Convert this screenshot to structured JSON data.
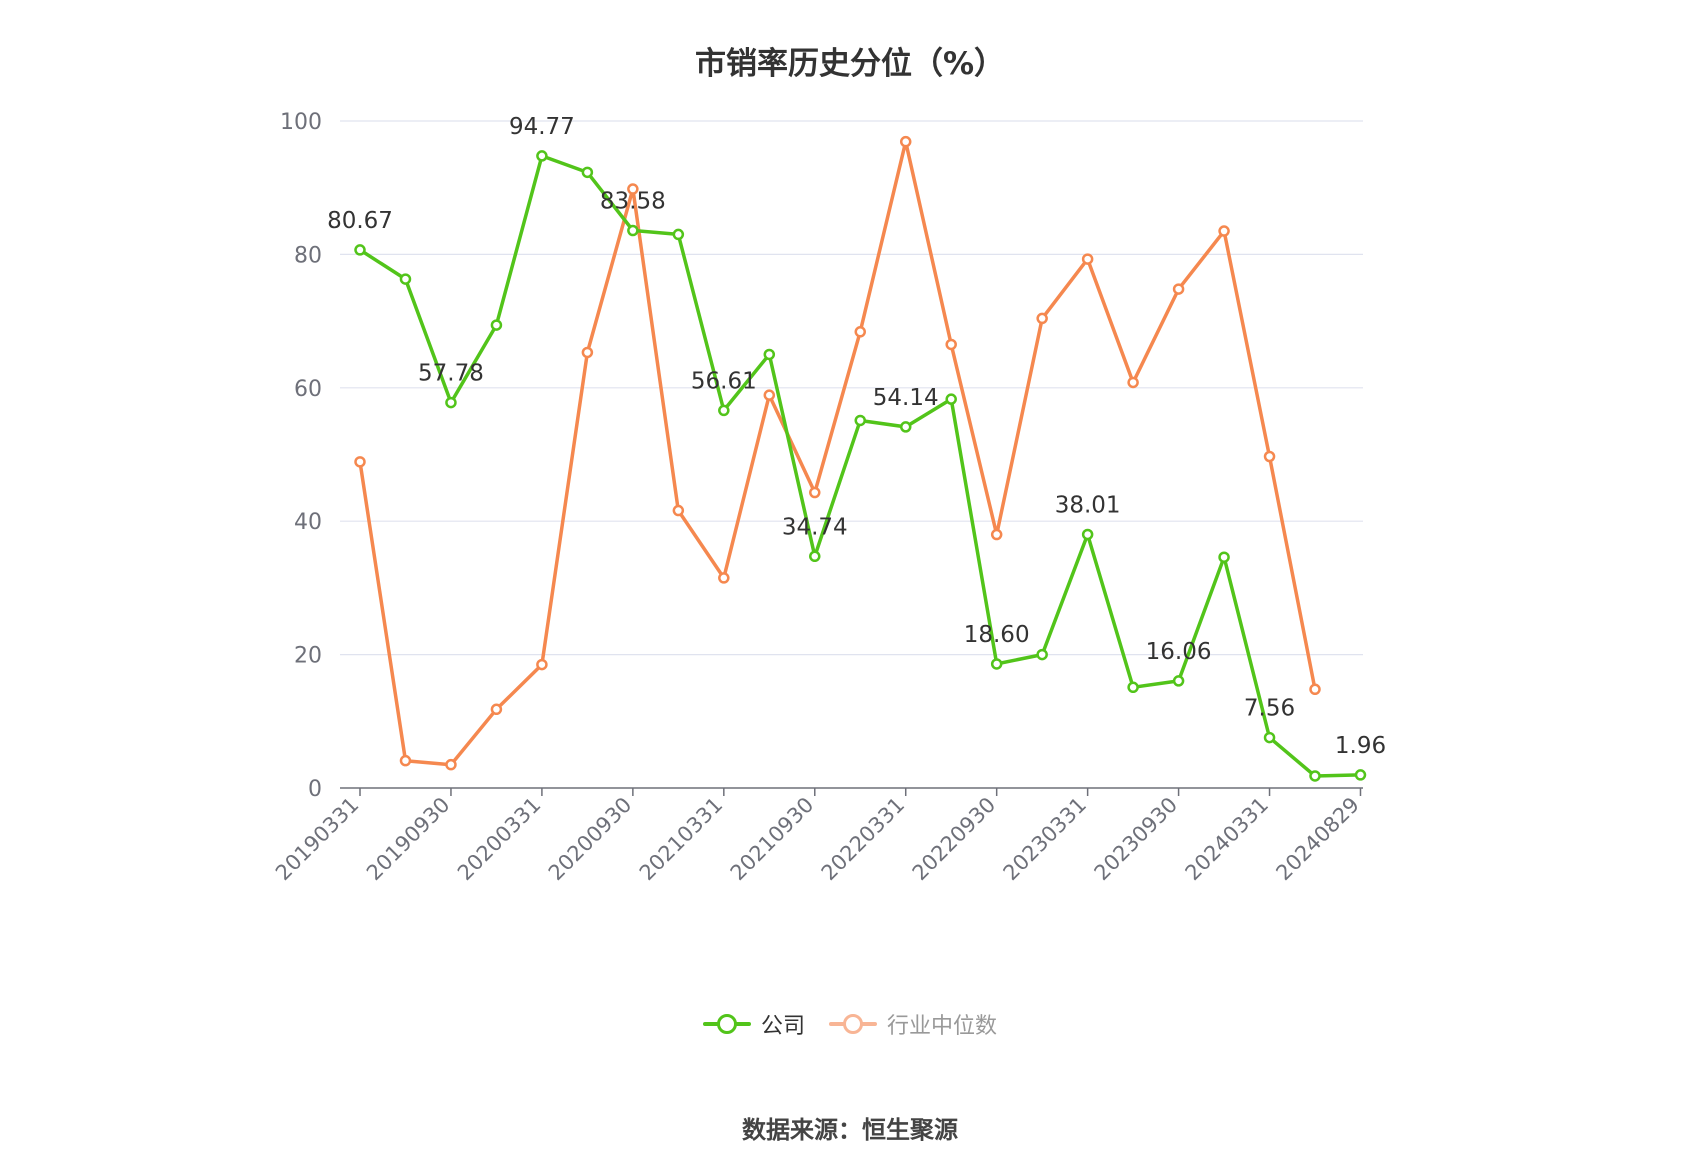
{
  "chart_data": {
    "type": "line",
    "title": "市销率历史分位（%）",
    "source": "数据来源：恒生聚源",
    "ylim": [
      0,
      100
    ],
    "yticks": [
      "0",
      "20",
      "40",
      "60",
      "80",
      "100"
    ],
    "grid": true,
    "legend_position": "bottom-center",
    "x": [
      "20190331",
      "20190630",
      "20190930",
      "20191231",
      "20200331",
      "20200630",
      "20200930",
      "20201231",
      "20210331",
      "20210630",
      "20210930",
      "20211231",
      "20220331",
      "20220630",
      "20220930",
      "20221231",
      "20230331",
      "20230630",
      "20230930",
      "20231231",
      "20240331",
      "20240630",
      "20240829"
    ],
    "xtick_labels": [
      "20190331",
      "20190930",
      "20200331",
      "20200930",
      "20210331",
      "20210930",
      "20220331",
      "20220930",
      "20230331",
      "20230930",
      "20240331",
      "20240829"
    ],
    "series": [
      {
        "name": "公司",
        "color": "#52c41a",
        "values": [
          80.67,
          76.3,
          57.78,
          69.4,
          94.77,
          92.3,
          83.58,
          83.0,
          56.61,
          65.0,
          34.74,
          55.1,
          54.14,
          58.3,
          18.6,
          20.0,
          38.01,
          15.1,
          16.06,
          34.6,
          7.56,
          1.8,
          1.96
        ],
        "data_labels": [
          {
            "index": 0,
            "text": "80.67"
          },
          {
            "index": 2,
            "text": "57.78"
          },
          {
            "index": 4,
            "text": "94.77"
          },
          {
            "index": 6,
            "text": "83.58"
          },
          {
            "index": 8,
            "text": "56.61"
          },
          {
            "index": 10,
            "text": "34.74"
          },
          {
            "index": 12,
            "text": "54.14"
          },
          {
            "index": 14,
            "text": "18.60"
          },
          {
            "index": 16,
            "text": "38.01"
          },
          {
            "index": 18,
            "text": "16.06"
          },
          {
            "index": 20,
            "text": "7.56"
          },
          {
            "index": 22,
            "text": "1.96"
          }
        ]
      },
      {
        "name": "行业中位数",
        "color": "#f5884f",
        "values": [
          48.9,
          4.1,
          3.5,
          11.8,
          18.5,
          65.3,
          89.8,
          41.6,
          31.5,
          58.9,
          44.3,
          68.4,
          96.9,
          66.5,
          38.0,
          70.4,
          79.3,
          60.8,
          74.8,
          83.5,
          49.7,
          14.8,
          null
        ]
      }
    ]
  }
}
